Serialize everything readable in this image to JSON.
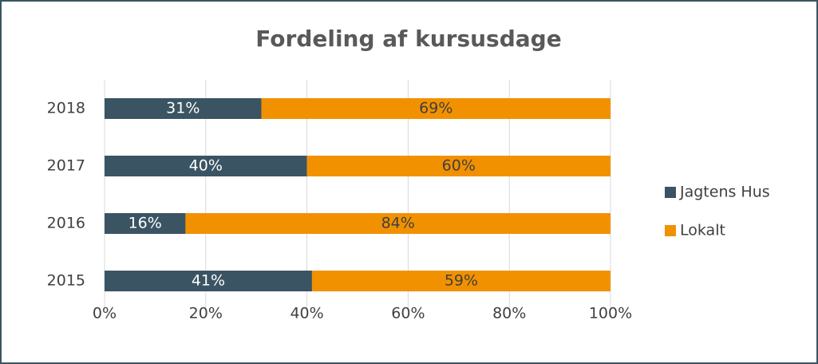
{
  "chart_data": {
    "type": "bar",
    "orientation": "horizontal",
    "stacked": true,
    "title": "Fordeling af kursusdage",
    "categories": [
      "2018",
      "2017",
      "2016",
      "2015"
    ],
    "series": [
      {
        "name": "Jagtens Hus",
        "color": "#3b5463",
        "values": [
          31,
          40,
          16,
          41
        ],
        "value_labels": [
          "31%",
          "40%",
          "16%",
          "41%"
        ]
      },
      {
        "name": "Lokalt",
        "color": "#f29100",
        "values": [
          69,
          60,
          84,
          59
        ],
        "value_labels": [
          "69%",
          "60%",
          "84%",
          "59%"
        ]
      }
    ],
    "xlim": [
      0,
      100
    ],
    "xticks": [
      {
        "value": 0,
        "label": "0%"
      },
      {
        "value": 20,
        "label": "20%"
      },
      {
        "value": 40,
        "label": "40%"
      },
      {
        "value": 60,
        "label": "60%"
      },
      {
        "value": 80,
        "label": "80%"
      },
      {
        "value": 100,
        "label": "100%"
      }
    ],
    "grid": true,
    "legend": "right"
  }
}
